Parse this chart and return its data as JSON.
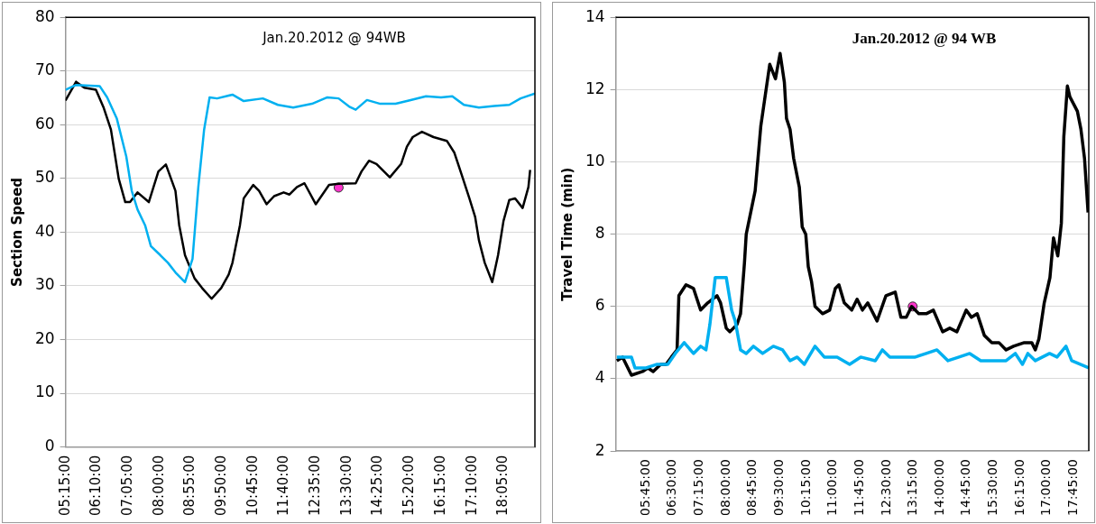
{
  "chart_data": [
    {
      "type": "line",
      "title": "Jan.20.2012 @ 94WB",
      "ylabel": "Section Speed",
      "xlim": [
        5.25,
        19.0
      ],
      "ylim": [
        0,
        80
      ],
      "yticks": [
        0,
        10,
        20,
        30,
        40,
        50,
        60,
        70,
        80
      ],
      "xticks": [
        {
          "value": 5.25,
          "label": "05:15:00"
        },
        {
          "value": 6.1667,
          "label": "06:10:00"
        },
        {
          "value": 7.0833,
          "label": "07:05:00"
        },
        {
          "value": 8.0,
          "label": "08:00:00"
        },
        {
          "value": 8.9167,
          "label": "08:55:00"
        },
        {
          "value": 9.8333,
          "label": "09:50:00"
        },
        {
          "value": 10.75,
          "label": "10:45:00"
        },
        {
          "value": 11.6667,
          "label": "11:40:00"
        },
        {
          "value": 12.5833,
          "label": "12:35:00"
        },
        {
          "value": 13.5,
          "label": "13:30:00"
        },
        {
          "value": 14.4167,
          "label": "14:25:00"
        },
        {
          "value": 15.3333,
          "label": "15:20:00"
        },
        {
          "value": 16.25,
          "label": "16:15:00"
        },
        {
          "value": 17.1667,
          "label": "17:10:00"
        },
        {
          "value": 18.0833,
          "label": "18:05:00"
        }
      ],
      "grid": "y",
      "marker": "none",
      "series": [
        {
          "color": "#00b0f0",
          "x": [
            5.25,
            5.56,
            6.25,
            6.47,
            6.75,
            7.03,
            7.19,
            7.36,
            7.58,
            7.75,
            8.03,
            8.25,
            8.47,
            8.75,
            8.97,
            9.14,
            9.31,
            9.47,
            9.69,
            10.14,
            10.47,
            11.03,
            11.47,
            11.92,
            12.47,
            12.92,
            13.25,
            13.58,
            13.75,
            14.08,
            14.47,
            14.92,
            15.36,
            15.81,
            16.25,
            16.58,
            16.92,
            17.36,
            17.81,
            18.25,
            18.58,
            19.0
          ],
          "values": [
            66.5,
            67.4,
            67.2,
            65.1,
            61.2,
            54.1,
            47.7,
            44.2,
            41.3,
            37.4,
            35.7,
            34.3,
            32.5,
            30.7,
            35.0,
            48.4,
            59.1,
            65.1,
            64.9,
            65.6,
            64.4,
            64.9,
            63.7,
            63.2,
            63.9,
            65.1,
            64.9,
            63.3,
            62.8,
            64.6,
            63.9,
            63.9,
            64.6,
            65.3,
            65.1,
            65.3,
            63.7,
            63.2,
            63.5,
            63.7,
            64.9,
            65.8
          ]
        },
        {
          "color": "#000000",
          "x": [
            5.25,
            5.56,
            5.8,
            6.14,
            6.36,
            6.58,
            6.81,
            7.0,
            7.14,
            7.36,
            7.69,
            7.97,
            8.19,
            8.47,
            8.58,
            8.75,
            9.03,
            9.25,
            9.53,
            9.81,
            10.03,
            10.14,
            10.36,
            10.47,
            10.75,
            10.92,
            11.14,
            11.36,
            11.64,
            11.81,
            12.03,
            12.25,
            12.58,
            12.97,
            13.25,
            13.75,
            13.92,
            14.14,
            14.36,
            14.75,
            15.08,
            15.25,
            15.42,
            15.69,
            16.03,
            16.42,
            16.64,
            16.86,
            17.08,
            17.25,
            17.36,
            17.53,
            17.75,
            17.92,
            18.08,
            18.25,
            18.42,
            18.64,
            18.81,
            18.86
          ],
          "values": [
            64.5,
            68.0,
            66.9,
            66.5,
            63.3,
            59.1,
            49.9,
            45.6,
            45.6,
            47.4,
            45.6,
            51.3,
            52.6,
            47.7,
            41.3,
            35.7,
            31.4,
            29.6,
            27.6,
            29.6,
            32.1,
            34.3,
            41.3,
            46.3,
            48.8,
            47.7,
            45.2,
            46.7,
            47.4,
            47.0,
            48.4,
            49.1,
            45.2,
            48.8,
            49.0,
            49.1,
            51.3,
            53.3,
            52.7,
            50.2,
            52.7,
            55.9,
            57.7,
            58.7,
            57.7,
            57.0,
            54.8,
            50.6,
            46.3,
            42.8,
            38.5,
            34.3,
            30.7,
            35.7,
            42.1,
            46.0,
            46.3,
            44.5,
            48.4,
            51.6
          ]
        },
        {
          "type": "scatter",
          "color": "#ff33cc",
          "marker": "circle",
          "x": [
            13.25
          ],
          "values": [
            48.3
          ]
        }
      ]
    },
    {
      "type": "line",
      "title": "Jan.20.2012 @ 94 WB",
      "ylabel": "Travel Time (min)",
      "xlim": [
        4.9,
        18.17
      ],
      "ylim": [
        2,
        14
      ],
      "yticks": [
        2,
        4,
        6,
        8,
        10,
        12,
        14
      ],
      "xticks": [
        {
          "value": 5.75,
          "label": "05:45:00"
        },
        {
          "value": 6.5,
          "label": "06:30:00"
        },
        {
          "value": 7.25,
          "label": "07:15:00"
        },
        {
          "value": 8.0,
          "label": "08:00:00"
        },
        {
          "value": 8.75,
          "label": "08:45:00"
        },
        {
          "value": 9.5,
          "label": "09:30:00"
        },
        {
          "value": 10.25,
          "label": "10:15:00"
        },
        {
          "value": 11.0,
          "label": "11:00:00"
        },
        {
          "value": 11.75,
          "label": "11:45:00"
        },
        {
          "value": 12.5,
          "label": "12:30:00"
        },
        {
          "value": 13.25,
          "label": "13:15:00"
        },
        {
          "value": 14.0,
          "label": "14:00:00"
        },
        {
          "value": 14.75,
          "label": "14:45:00"
        },
        {
          "value": 15.5,
          "label": "15:30:00"
        },
        {
          "value": 16.25,
          "label": "16:15:00"
        },
        {
          "value": 17.0,
          "label": "17:00:00"
        },
        {
          "value": 17.75,
          "label": "17:45:00"
        }
      ],
      "grid": "y",
      "marker": "none",
      "series": [
        {
          "color": "#00b0f0",
          "x": [
            4.93,
            5.34,
            5.44,
            5.75,
            6.06,
            6.36,
            6.57,
            6.82,
            7.08,
            7.28,
            7.43,
            7.54,
            7.69,
            7.84,
            8.0,
            8.15,
            8.25,
            8.4,
            8.56,
            8.76,
            9.02,
            9.32,
            9.58,
            9.79,
            9.99,
            10.19,
            10.49,
            10.75,
            11.11,
            11.46,
            11.77,
            12.18,
            12.38,
            12.59,
            13.0,
            13.3,
            13.61,
            13.91,
            14.22,
            14.53,
            14.83,
            15.14,
            15.55,
            15.85,
            16.11,
            16.31,
            16.46,
            16.67,
            17.07,
            17.28,
            17.53,
            17.69,
            18.17
          ],
          "values": [
            4.6,
            4.6,
            4.3,
            4.3,
            4.4,
            4.4,
            4.7,
            5.0,
            4.7,
            4.9,
            4.8,
            5.5,
            6.8,
            6.8,
            6.8,
            5.9,
            5.6,
            4.8,
            4.7,
            4.9,
            4.7,
            4.9,
            4.8,
            4.5,
            4.6,
            4.4,
            4.9,
            4.6,
            4.6,
            4.4,
            4.6,
            4.5,
            4.8,
            4.6,
            4.6,
            4.6,
            4.7,
            4.8,
            4.5,
            4.6,
            4.7,
            4.5,
            4.5,
            4.5,
            4.7,
            4.4,
            4.7,
            4.5,
            4.7,
            4.6,
            4.9,
            4.5,
            4.3
          ]
        },
        {
          "color": "#000000",
          "x": [
            4.93,
            5.09,
            5.34,
            5.65,
            5.8,
            5.95,
            6.16,
            6.31,
            6.46,
            6.62,
            6.67,
            6.87,
            7.08,
            7.28,
            7.48,
            7.74,
            7.84,
            8.0,
            8.1,
            8.3,
            8.4,
            8.51,
            8.56,
            8.81,
            8.97,
            9.22,
            9.38,
            9.51,
            9.63,
            9.69,
            9.79,
            9.89,
            10.05,
            10.13,
            10.23,
            10.3,
            10.39,
            10.49,
            10.7,
            10.9,
            11.06,
            11.16,
            11.31,
            11.52,
            11.67,
            11.82,
            11.97,
            12.23,
            12.48,
            12.74,
            12.9,
            13.05,
            13.2,
            13.4,
            13.61,
            13.81,
            14.07,
            14.27,
            14.47,
            14.73,
            14.88,
            15.04,
            15.24,
            15.45,
            15.65,
            15.85,
            16.06,
            16.36,
            16.57,
            16.67,
            16.77,
            16.92,
            17.08,
            17.18,
            17.3,
            17.4,
            17.47,
            17.57,
            17.64,
            17.85,
            17.95,
            18.05,
            18.15
          ],
          "values": [
            4.5,
            4.6,
            4.1,
            4.2,
            4.3,
            4.2,
            4.4,
            4.4,
            4.6,
            4.8,
            6.3,
            6.6,
            6.5,
            5.9,
            6.1,
            6.3,
            6.1,
            5.4,
            5.3,
            5.5,
            5.8,
            7.2,
            8.0,
            9.2,
            11.0,
            12.7,
            12.3,
            13.0,
            12.2,
            11.2,
            10.9,
            10.1,
            9.3,
            8.2,
            8.0,
            7.1,
            6.7,
            6.0,
            5.8,
            5.9,
            6.5,
            6.6,
            6.1,
            5.9,
            6.2,
            5.9,
            6.1,
            5.6,
            6.3,
            6.4,
            5.7,
            5.7,
            6.0,
            5.8,
            5.8,
            5.9,
            5.3,
            5.4,
            5.3,
            5.9,
            5.7,
            5.8,
            5.2,
            5.0,
            5.0,
            4.8,
            4.9,
            5.0,
            5.0,
            4.8,
            5.1,
            6.1,
            6.8,
            7.9,
            7.4,
            8.3,
            10.7,
            12.1,
            11.8,
            11.4,
            10.9,
            10.1,
            8.6
          ]
        },
        {
          "type": "scatter",
          "color": "#ff33cc",
          "marker": "circle",
          "x": [
            13.23
          ],
          "values": [
            6.0
          ]
        }
      ]
    }
  ]
}
